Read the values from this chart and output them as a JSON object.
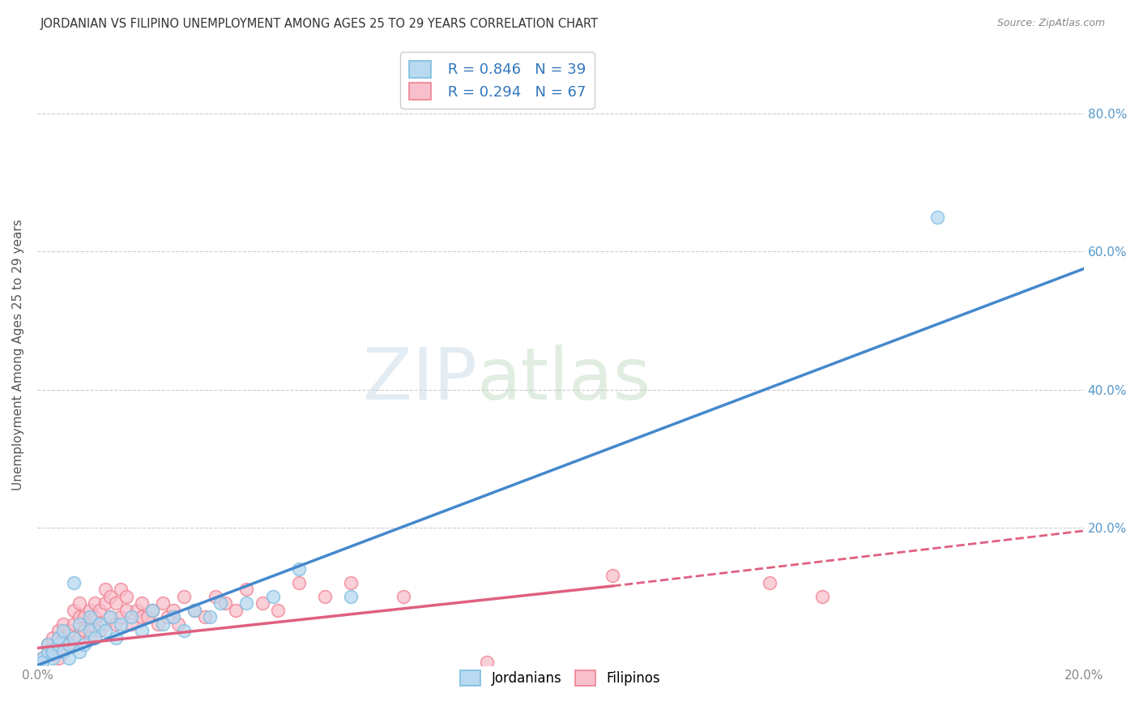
{
  "title": "JORDANIAN VS FILIPINO UNEMPLOYMENT AMONG AGES 25 TO 29 YEARS CORRELATION CHART",
  "source": "Source: ZipAtlas.com",
  "ylabel": "Unemployment Among Ages 25 to 29 years",
  "xlim": [
    0.0,
    0.2
  ],
  "ylim": [
    0.0,
    0.9
  ],
  "x_ticks": [
    0.0,
    0.04,
    0.08,
    0.12,
    0.16,
    0.2
  ],
  "y_ticks": [
    0.0,
    0.2,
    0.4,
    0.6,
    0.8
  ],
  "jordan_color": "#7bbde0",
  "jordan_fill": "#b8d9f0",
  "filip_color": "#f08090",
  "filip_fill": "#f8c0cc",
  "jordan_R": 0.846,
  "jordan_N": 39,
  "filip_R": 0.294,
  "filip_N": 67,
  "watermark_zip": "ZIP",
  "watermark_atlas": "atlas",
  "legend_labels": [
    "Jordanians",
    "Filipinos"
  ],
  "background_color": "#ffffff",
  "grid_color": "#cccccc",
  "title_color": "#333333",
  "axis_label_color": "#555555",
  "tick_label_color_right": "#5599cc",
  "jordan_line_color": "#4488cc",
  "filip_line_color": "#e06080",
  "legend_text_color": "#3377bb",
  "jordan_line": [
    [
      0.0,
      0.0
    ],
    [
      0.2,
      0.575
    ]
  ],
  "filip_line_solid": [
    [
      0.0,
      0.025
    ],
    [
      0.11,
      0.115
    ]
  ],
  "filip_line_dashed": [
    [
      0.11,
      0.115
    ],
    [
      0.2,
      0.195
    ]
  ],
  "jordan_scatter": [
    [
      0.001,
      0.01
    ],
    [
      0.002,
      0.02
    ],
    [
      0.002,
      0.03
    ],
    [
      0.003,
      0.01
    ],
    [
      0.003,
      0.02
    ],
    [
      0.004,
      0.03
    ],
    [
      0.004,
      0.04
    ],
    [
      0.005,
      0.02
    ],
    [
      0.005,
      0.05
    ],
    [
      0.006,
      0.01
    ],
    [
      0.006,
      0.03
    ],
    [
      0.007,
      0.04
    ],
    [
      0.007,
      0.12
    ],
    [
      0.008,
      0.02
    ],
    [
      0.008,
      0.06
    ],
    [
      0.009,
      0.03
    ],
    [
      0.01,
      0.05
    ],
    [
      0.01,
      0.07
    ],
    [
      0.011,
      0.04
    ],
    [
      0.012,
      0.06
    ],
    [
      0.013,
      0.05
    ],
    [
      0.014,
      0.07
    ],
    [
      0.015,
      0.04
    ],
    [
      0.016,
      0.06
    ],
    [
      0.018,
      0.07
    ],
    [
      0.02,
      0.05
    ],
    [
      0.022,
      0.08
    ],
    [
      0.024,
      0.06
    ],
    [
      0.026,
      0.07
    ],
    [
      0.028,
      0.05
    ],
    [
      0.03,
      0.08
    ],
    [
      0.033,
      0.07
    ],
    [
      0.035,
      0.09
    ],
    [
      0.04,
      0.09
    ],
    [
      0.045,
      0.1
    ],
    [
      0.05,
      0.14
    ],
    [
      0.06,
      0.1
    ],
    [
      0.172,
      0.65
    ],
    [
      0.001,
      0.005
    ]
  ],
  "filip_scatter": [
    [
      0.001,
      0.01
    ],
    [
      0.002,
      0.02
    ],
    [
      0.002,
      0.03
    ],
    [
      0.003,
      0.02
    ],
    [
      0.003,
      0.04
    ],
    [
      0.004,
      0.01
    ],
    [
      0.004,
      0.03
    ],
    [
      0.004,
      0.05
    ],
    [
      0.005,
      0.02
    ],
    [
      0.005,
      0.04
    ],
    [
      0.005,
      0.06
    ],
    [
      0.006,
      0.03
    ],
    [
      0.006,
      0.05
    ],
    [
      0.007,
      0.03
    ],
    [
      0.007,
      0.06
    ],
    [
      0.007,
      0.08
    ],
    [
      0.008,
      0.04
    ],
    [
      0.008,
      0.07
    ],
    [
      0.008,
      0.09
    ],
    [
      0.009,
      0.05
    ],
    [
      0.009,
      0.07
    ],
    [
      0.01,
      0.04
    ],
    [
      0.01,
      0.06
    ],
    [
      0.01,
      0.08
    ],
    [
      0.011,
      0.07
    ],
    [
      0.011,
      0.09
    ],
    [
      0.012,
      0.05
    ],
    [
      0.012,
      0.08
    ],
    [
      0.013,
      0.06
    ],
    [
      0.013,
      0.09
    ],
    [
      0.013,
      0.11
    ],
    [
      0.014,
      0.07
    ],
    [
      0.014,
      0.1
    ],
    [
      0.015,
      0.06
    ],
    [
      0.015,
      0.09
    ],
    [
      0.016,
      0.07
    ],
    [
      0.016,
      0.11
    ],
    [
      0.017,
      0.08
    ],
    [
      0.017,
      0.1
    ],
    [
      0.018,
      0.06
    ],
    [
      0.019,
      0.08
    ],
    [
      0.02,
      0.07
    ],
    [
      0.02,
      0.09
    ],
    [
      0.021,
      0.07
    ],
    [
      0.022,
      0.08
    ],
    [
      0.023,
      0.06
    ],
    [
      0.024,
      0.09
    ],
    [
      0.025,
      0.07
    ],
    [
      0.026,
      0.08
    ],
    [
      0.027,
      0.06
    ],
    [
      0.028,
      0.1
    ],
    [
      0.03,
      0.08
    ],
    [
      0.032,
      0.07
    ],
    [
      0.034,
      0.1
    ],
    [
      0.036,
      0.09
    ],
    [
      0.038,
      0.08
    ],
    [
      0.04,
      0.11
    ],
    [
      0.043,
      0.09
    ],
    [
      0.046,
      0.08
    ],
    [
      0.05,
      0.12
    ],
    [
      0.055,
      0.1
    ],
    [
      0.06,
      0.12
    ],
    [
      0.07,
      0.1
    ],
    [
      0.11,
      0.13
    ],
    [
      0.14,
      0.12
    ],
    [
      0.15,
      0.1
    ],
    [
      0.086,
      0.005
    ]
  ]
}
